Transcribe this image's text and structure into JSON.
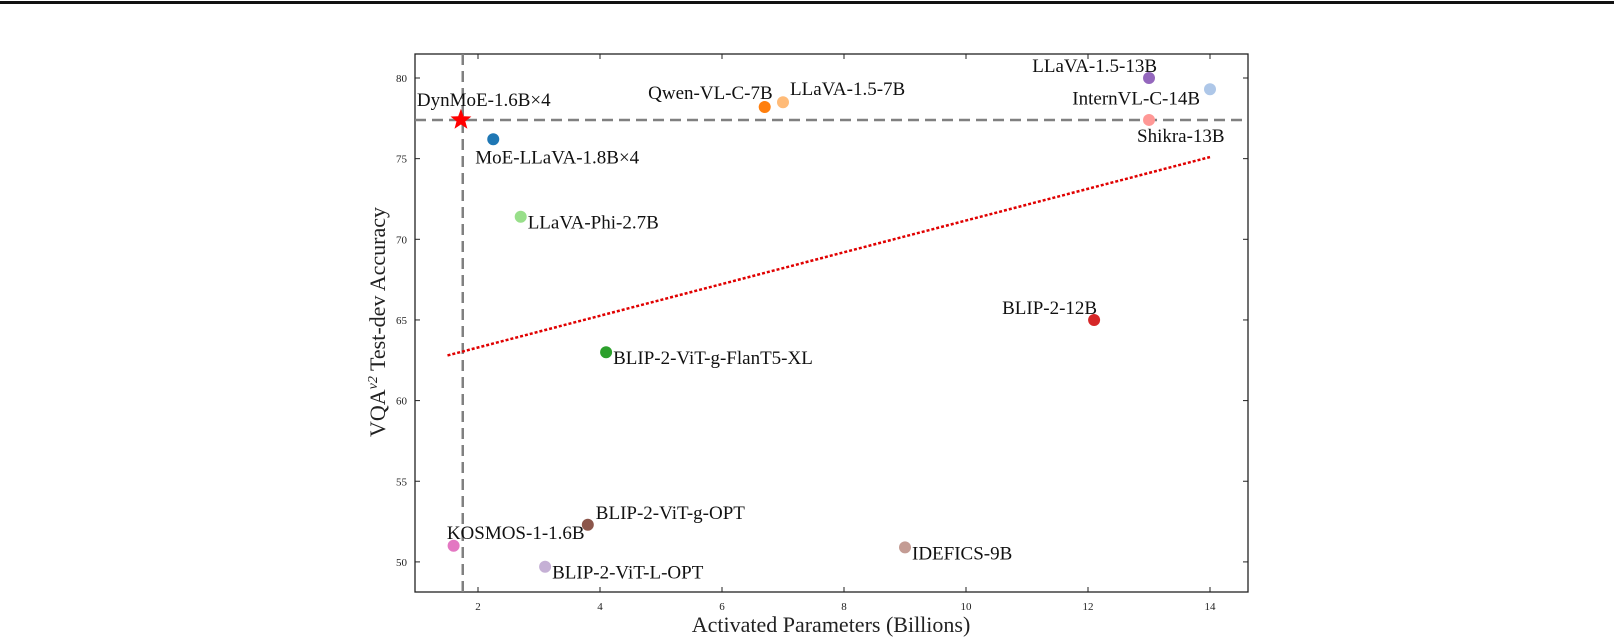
{
  "chart_data": {
    "type": "scatter",
    "title": "",
    "xlabel": "Activated Parameters (Billions)",
    "ylabel": "VQA^v2 Test-dev Accuracy",
    "ylabel_parts": {
      "main": "VQA",
      "sup": "v2",
      "rest": " Test-dev Accuracy"
    },
    "xlim": [
      0.97,
      14.6
    ],
    "ylim": [
      48.1,
      81.5
    ],
    "xticks": [
      2,
      4,
      6,
      8,
      10,
      12,
      14
    ],
    "yticks": [
      50,
      55,
      60,
      65,
      70,
      75,
      80
    ],
    "grid": false,
    "legend": null,
    "points": [
      {
        "label": "DynMoE-1.6B×4",
        "x": 1.72,
        "y": 77.4,
        "color": "#ff0000",
        "marker": "star"
      },
      {
        "label": "MoE-LLaVA-1.8B×4",
        "x": 2.25,
        "y": 76.2,
        "color": "#1f77b4",
        "marker": "circle"
      },
      {
        "label": "LLaVA-Phi-2.7B",
        "x": 2.7,
        "y": 71.4,
        "color": "#98df8a",
        "marker": "circle"
      },
      {
        "label": "Qwen-VL-C-7B",
        "x": 6.7,
        "y": 78.2,
        "color": "#ff7f0e",
        "marker": "circle"
      },
      {
        "label": "LLaVA-1.5-7B",
        "x": 7.0,
        "y": 78.5,
        "color": "#ffbb78",
        "marker": "circle"
      },
      {
        "label": "LLaVA-1.5-13B",
        "x": 13.0,
        "y": 80.0,
        "color": "#9467bd",
        "marker": "circle"
      },
      {
        "label": "InternVL-C-14B",
        "x": 14.0,
        "y": 79.3,
        "color": "#aec7e8",
        "marker": "circle"
      },
      {
        "label": "Shikra-13B",
        "x": 13.0,
        "y": 77.4,
        "color": "#ff9896",
        "marker": "circle"
      },
      {
        "label": "BLIP-2-12B",
        "x": 12.1,
        "y": 65.0,
        "color": "#d62728",
        "marker": "circle"
      },
      {
        "label": "BLIP-2-ViT-g-FlanT5-XL",
        "x": 4.1,
        "y": 63.0,
        "color": "#2ca02c",
        "marker": "circle"
      },
      {
        "label": "BLIP-2-ViT-g-OPT",
        "x": 3.8,
        "y": 52.3,
        "color": "#8c564b",
        "marker": "circle"
      },
      {
        "label": "KOSMOS-1-1.6B",
        "x": 1.6,
        "y": 51.0,
        "color": "#e377c2",
        "marker": "circle"
      },
      {
        "label": "BLIP-2-ViT-L-OPT",
        "x": 3.1,
        "y": 49.7,
        "color": "#c5b0d5",
        "marker": "circle"
      },
      {
        "label": "IDEFICS-9B",
        "x": 9.0,
        "y": 50.9,
        "color": "#c49c94",
        "marker": "circle"
      }
    ],
    "reference_lines": [
      {
        "orientation": "vertical",
        "x": 1.75,
        "style": "dashed",
        "color": "#808080"
      },
      {
        "orientation": "horizontal",
        "y": 77.4,
        "style": "dashed",
        "color": "#808080"
      }
    ],
    "trend_line": {
      "x": [
        1.5,
        14.0
      ],
      "y": [
        62.8,
        75.1
      ],
      "style": "dotted",
      "color": "#e00000"
    }
  }
}
